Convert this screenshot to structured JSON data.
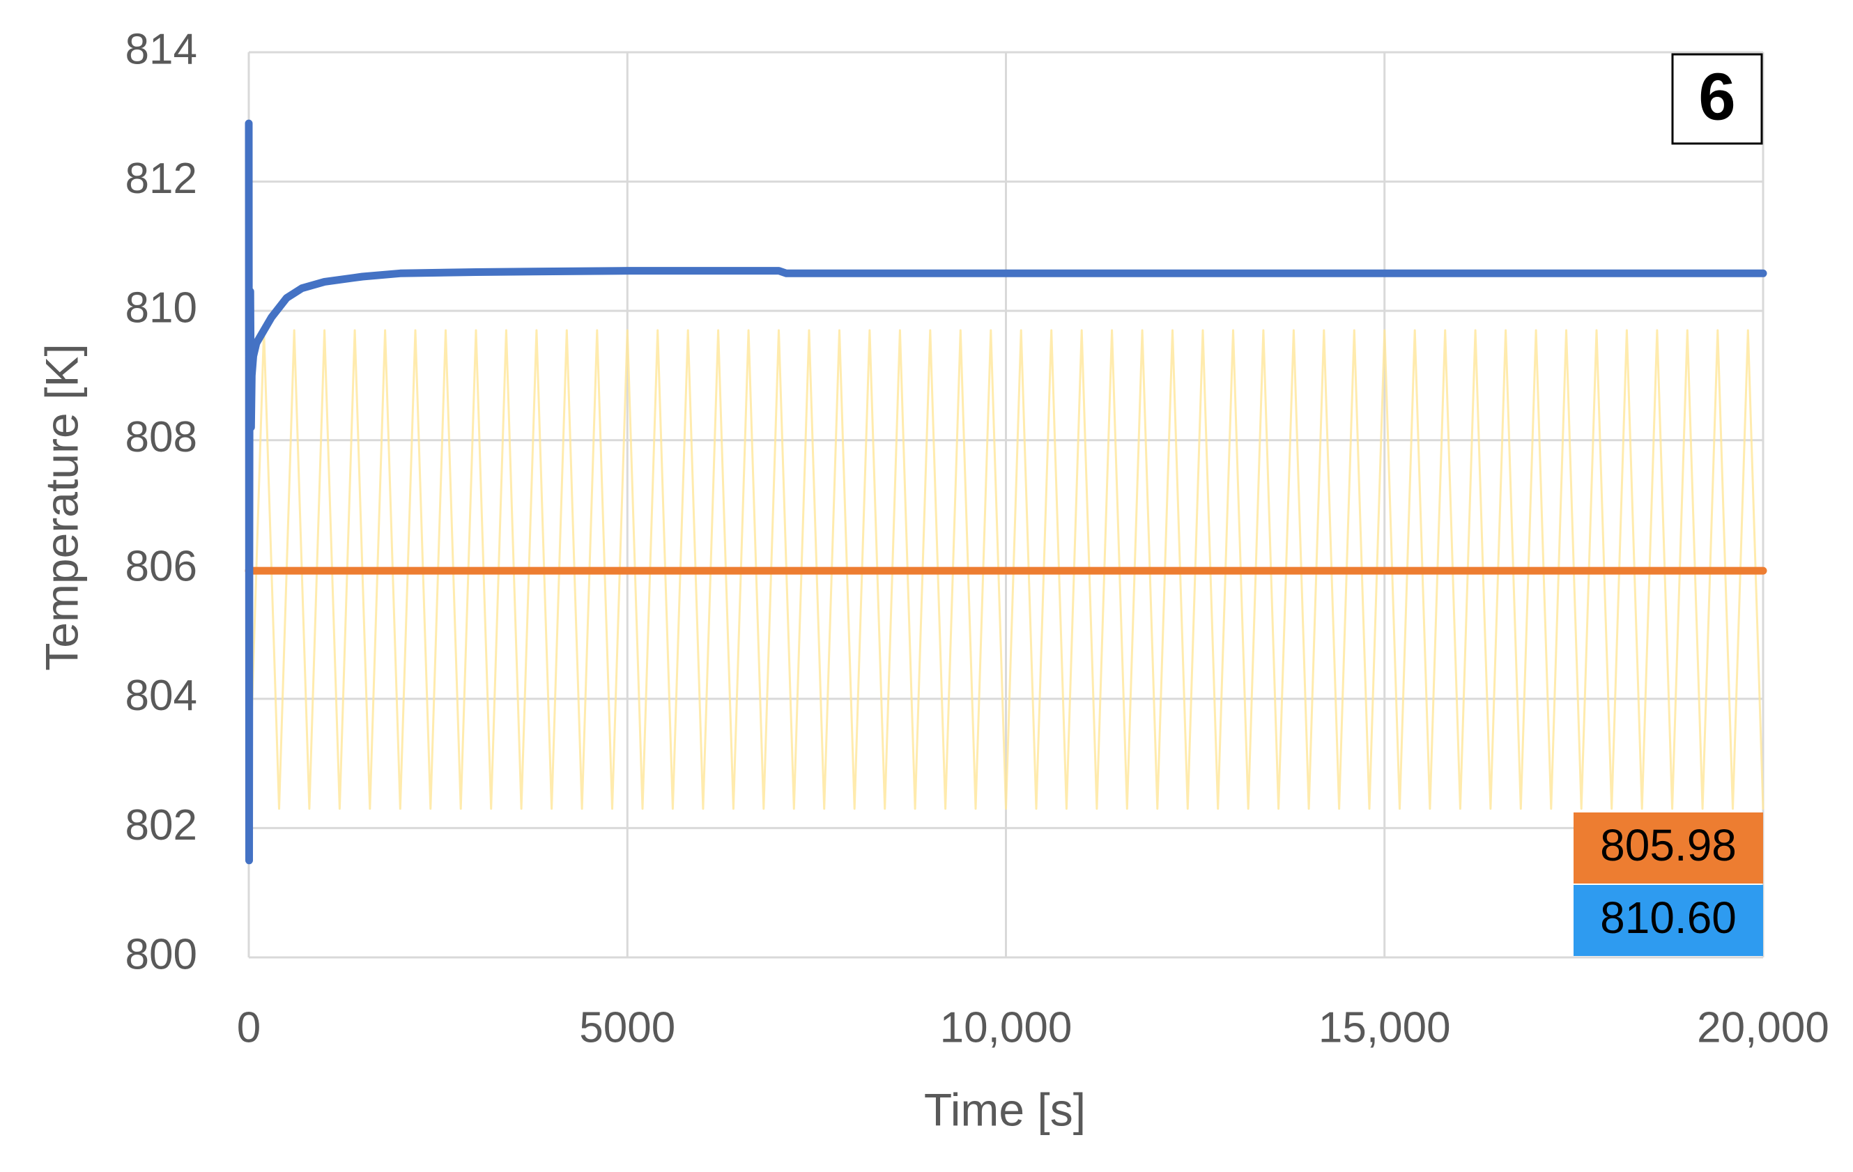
{
  "chart_data": {
    "type": "line",
    "xlabel": "Time [s]",
    "ylabel": "Temperature [K]",
    "panel_label": "6",
    "xlim": [
      0,
      20000
    ],
    "xticks": [
      0,
      5000,
      {
        "value": 10000,
        "label": "10,000"
      },
      {
        "value": 15000,
        "label": "15,000"
      },
      {
        "value": 20000,
        "label": "20,000"
      }
    ],
    "ylim": [
      800,
      814
    ],
    "yticks": [
      800,
      802,
      804,
      806,
      808,
      810,
      812,
      814
    ],
    "grid": true,
    "series": [
      {
        "color": "#ffe699",
        "x": [
          0,
          200,
          400,
          600,
          800,
          1000,
          1200,
          1400,
          1600,
          1800,
          2000,
          2200,
          2400,
          2600,
          2800,
          3000,
          3200,
          3400,
          3600,
          3800,
          4000,
          4200,
          4400,
          4600,
          4800,
          5000,
          5200,
          5400,
          5600,
          5800,
          6000,
          6200,
          6400,
          6600,
          6800,
          7000,
          7200,
          7400,
          7600,
          7800,
          8000,
          8200,
          8400,
          8600,
          8800,
          9000,
          9200,
          9400,
          9600,
          9800,
          10000,
          10200,
          10400,
          10600,
          10800,
          11000,
          11200,
          11400,
          11600,
          11800,
          12000,
          12200,
          12400,
          12600,
          12800,
          13000,
          13200,
          13400,
          13600,
          13800,
          14000,
          14200,
          14400,
          14600,
          14800,
          15000,
          15200,
          15400,
          15600,
          15800,
          16000,
          16200,
          16400,
          16600,
          16800,
          17000,
          17200,
          17400,
          17600,
          17800,
          18000,
          18200,
          18400,
          18600,
          18800,
          19000,
          19200,
          19400,
          19600,
          19800,
          20000
        ],
        "values": [
          802.3,
          809.7,
          802.3,
          809.7,
          802.3,
          809.7,
          802.3,
          809.7,
          802.3,
          809.7,
          802.3,
          809.7,
          802.3,
          809.7,
          802.3,
          809.7,
          802.3,
          809.7,
          802.3,
          809.7,
          802.3,
          809.7,
          802.3,
          809.7,
          802.3,
          809.7,
          802.3,
          809.7,
          802.3,
          809.7,
          802.3,
          809.7,
          802.3,
          809.7,
          802.3,
          809.7,
          802.3,
          809.7,
          802.3,
          809.7,
          802.3,
          809.7,
          802.3,
          809.7,
          802.3,
          809.7,
          802.3,
          809.7,
          802.3,
          809.7,
          802.3,
          809.7,
          802.3,
          809.7,
          802.3,
          809.7,
          802.3,
          809.7,
          802.3,
          809.7,
          802.3,
          809.7,
          802.3,
          809.7,
          802.3,
          809.7,
          802.3,
          809.7,
          802.3,
          809.7,
          802.3,
          809.7,
          802.3,
          809.7,
          802.3,
          809.7,
          802.3,
          809.7,
          802.3,
          809.7,
          802.3,
          809.7,
          802.3,
          809.7,
          802.3,
          809.7,
          802.3,
          809.7,
          802.3,
          809.7,
          802.3,
          809.7,
          802.3,
          809.7,
          802.3,
          809.7,
          802.3,
          809.7,
          802.3,
          809.7,
          802.3
        ]
      },
      {
        "color": "#ed7d31",
        "x": [
          0,
          20000
        ],
        "values": [
          805.98,
          805.98
        ]
      },
      {
        "color": "#4472c4",
        "x": [
          0,
          5,
          10,
          20,
          30,
          40,
          60,
          100,
          200,
          300,
          500,
          700,
          1000,
          1500,
          2000,
          3000,
          5000,
          7000,
          7100,
          20000
        ],
        "values": [
          812.9,
          801.5,
          808.2,
          810.3,
          808.2,
          809.0,
          809.3,
          809.5,
          809.7,
          809.9,
          810.2,
          810.35,
          810.45,
          810.53,
          810.58,
          810.6,
          810.62,
          810.62,
          810.58,
          810.58
        ]
      }
    ],
    "annotations": [
      {
        "text": "805.98",
        "color": "#ed7d31"
      },
      {
        "text": "810.60",
        "color": "#2e9bf0"
      }
    ]
  }
}
